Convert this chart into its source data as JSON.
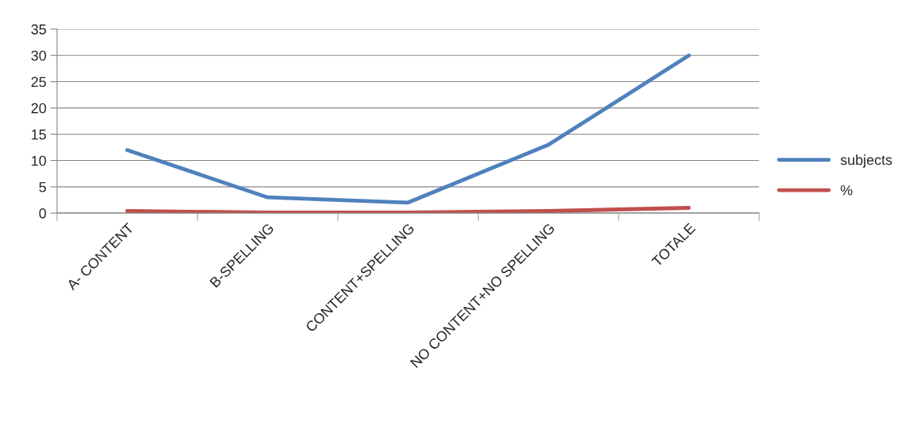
{
  "chart_data": {
    "type": "line",
    "categories": [
      "A- CONTENT",
      "B-SPELLING",
      "CONTENT+SPELLING",
      "NO CONTENT+NO SPELLING",
      "TOTALE"
    ],
    "series": [
      {
        "name": "subjects",
        "color": "#4f81bd",
        "values": [
          12,
          3,
          2,
          13,
          30
        ]
      },
      {
        "name": "%",
        "color": "#c0504d",
        "values": [
          0.4,
          0.1,
          0.1,
          0.4,
          1
        ]
      }
    ],
    "ylim": [
      0,
      35
    ],
    "yticks": [
      0,
      5,
      10,
      15,
      20,
      25,
      30,
      35
    ],
    "grid": "y",
    "legend": "right",
    "marker": "none",
    "line_style": "solid"
  }
}
